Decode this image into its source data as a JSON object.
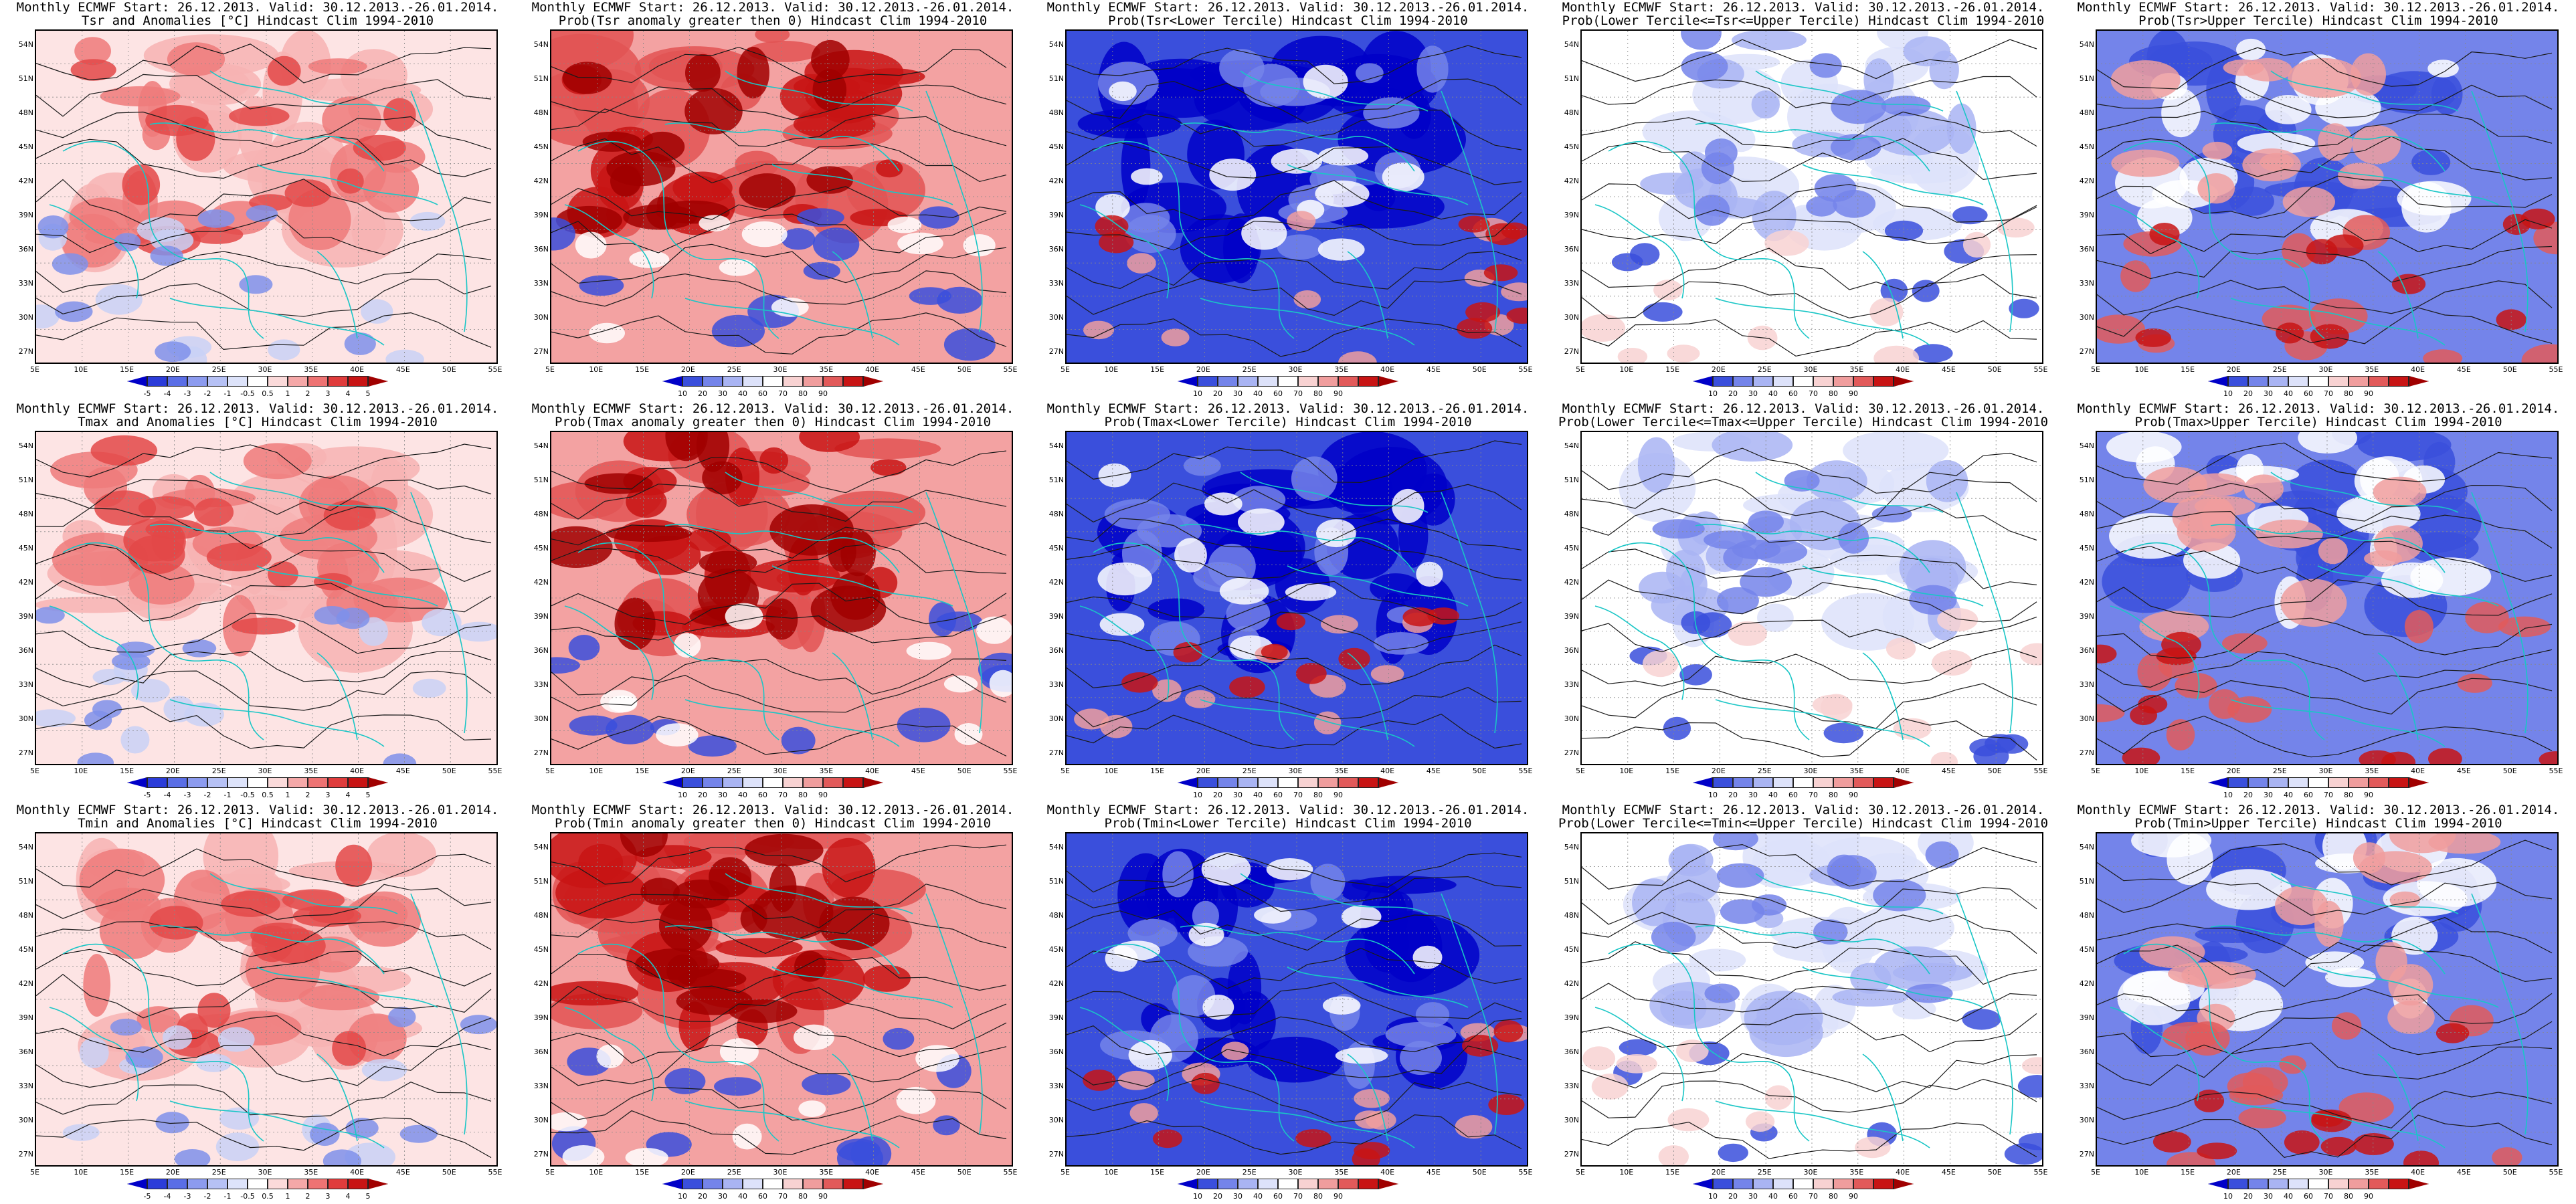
{
  "panels": [
    {
      "id": "tsr-anom",
      "title1": "Monthly ECMWF Start: 26.12.2013. Valid: 30.12.2013.-26.01.2014.",
      "title2": "Tsr and Anomalies [°C] Hindcast Clim 1994-2010",
      "scale": "anom",
      "pattern": "anom-red"
    },
    {
      "id": "tsr-prob-gt0",
      "title1": "Monthly ECMWF Start: 26.12.2013. Valid: 30.12.2013.-26.01.2014.",
      "title2": "Prob(Tsr anomaly greater then 0) Hindcast Clim 1994-2010",
      "scale": "prob",
      "pattern": "prob-red"
    },
    {
      "id": "tsr-prob-lower",
      "title1": "Monthly ECMWF Start: 26.12.2013. Valid: 30.12.2013.-26.01.2014.",
      "title2": "Prob(Tsr<Lower Tercile) Hindcast Clim 1994-2010",
      "scale": "prob",
      "pattern": "prob-blue"
    },
    {
      "id": "tsr-prob-middle",
      "title1": "Monthly ECMWF Start: 26.12.2013. Valid: 30.12.2013.-26.01.2014.",
      "title2": "Prob(Lower Tercile<=Tsr<=Upper Tercile) Hindcast Clim 1994-2010",
      "scale": "prob",
      "pattern": "prob-mid"
    },
    {
      "id": "tsr-prob-upper",
      "title1": "Monthly ECMWF Start: 26.12.2013. Valid: 30.12.2013.-26.01.2014.",
      "title2": "Prob(Tsr>Upper Tercile) Hindcast Clim 1994-2010",
      "scale": "prob",
      "pattern": "prob-upper"
    },
    {
      "id": "tmax-anom",
      "title1": "Monthly ECMWF Start: 26.12.2013. Valid: 30.12.2013.-26.01.2014.",
      "title2": "Tmax and Anomalies [°C] Hindcast Clim 1994-2010",
      "scale": "anom",
      "pattern": "anom-red"
    },
    {
      "id": "tmax-prob-gt0",
      "title1": "Monthly ECMWF Start: 26.12.2013. Valid: 30.12.2013.-26.01.2014.",
      "title2": "Prob(Tmax anomaly greater then 0) Hindcast Clim 1994-2010",
      "scale": "prob",
      "pattern": "prob-red"
    },
    {
      "id": "tmax-prob-lower",
      "title1": "Monthly ECMWF Start: 26.12.2013. Valid: 30.12.2013.-26.01.2014.",
      "title2": "Prob(Tmax<Lower Tercile) Hindcast Clim 1994-2010",
      "scale": "prob",
      "pattern": "prob-blue"
    },
    {
      "id": "tmax-prob-middle",
      "title1": "Monthly ECMWF Start: 26.12.2013. Valid: 30.12.2013.-26.01.2014.",
      "title2": "Prob(Lower Tercile<=Tmax<=Upper Tercile) Hindcast Clim 1994-2010",
      "scale": "prob",
      "pattern": "prob-mid"
    },
    {
      "id": "tmax-prob-upper",
      "title1": "Monthly ECMWF Start: 26.12.2013. Valid: 30.12.2013.-26.01.2014.",
      "title2": "Prob(Tmax>Upper Tercile) Hindcast Clim 1994-2010",
      "scale": "prob",
      "pattern": "prob-upper"
    },
    {
      "id": "tmin-anom",
      "title1": "Monthly ECMWF Start: 26.12.2013. Valid: 30.12.2013.-26.01.2014.",
      "title2": "Tmin and Anomalies [°C] Hindcast Clim 1994-2010",
      "scale": "anom",
      "pattern": "anom-red"
    },
    {
      "id": "tmin-prob-gt0",
      "title1": "Monthly ECMWF Start: 26.12.2013. Valid: 30.12.2013.-26.01.2014.",
      "title2": "Prob(Tmin anomaly greater then 0) Hindcast Clim 1994-2010",
      "scale": "prob",
      "pattern": "prob-red"
    },
    {
      "id": "tmin-prob-lower",
      "title1": "Monthly ECMWF Start: 26.12.2013. Valid: 30.12.2013.-26.01.2014.",
      "title2": "Prob(Tmin<Lower Tercile) Hindcast Clim 1994-2010",
      "scale": "prob",
      "pattern": "prob-blue"
    },
    {
      "id": "tmin-prob-middle",
      "title1": "Monthly ECMWF Start: 26.12.2013. Valid: 30.12.2013.-26.01.2014.",
      "title2": "Prob(Lower Tercile<=Tmin<=Upper Tercile) Hindcast Clim 1994-2010",
      "scale": "prob",
      "pattern": "prob-mid"
    },
    {
      "id": "tmin-prob-upper",
      "title1": "Monthly ECMWF Start: 26.12.2013. Valid: 30.12.2013.-26.01.2014.",
      "title2": "Prob(Tmin>Upper Tercile) Hindcast Clim 1994-2010",
      "scale": "prob",
      "pattern": "prob-upper"
    }
  ],
  "axes": {
    "lat_labels": [
      "54N",
      "51N",
      "48N",
      "45N",
      "42N",
      "39N",
      "36N",
      "33N",
      "30N",
      "27N"
    ],
    "lon_labels": [
      "5E",
      "10E",
      "15E",
      "20E",
      "25E",
      "30E",
      "35E",
      "40E",
      "45E",
      "50E",
      "55E"
    ]
  },
  "colorbars": {
    "anom": {
      "ticks": [
        "-5",
        "-4",
        "-3",
        "-2",
        "-1",
        "-0.5",
        "0.5",
        "1",
        "2",
        "3",
        "4",
        "5"
      ],
      "colors": [
        "#0000c8",
        "#2b3cd9",
        "#5a6ee6",
        "#8c9bef",
        "#b6c1f5",
        "#dde3fa",
        "#ffffff",
        "#fbdada",
        "#f5a8a8",
        "#ee7373",
        "#e03c3c",
        "#c81414",
        "#a00000"
      ]
    },
    "prob": {
      "ticks": [
        "10",
        "20",
        "30",
        "40",
        "60",
        "70",
        "80",
        "90"
      ],
      "colors": [
        "#0000c8",
        "#3a4fdc",
        "#7484ea",
        "#a9b4f3",
        "#dde2fa",
        "#ffffff",
        "#f8d2d2",
        "#f09d9d",
        "#e25a5a",
        "#c81414",
        "#a00000"
      ]
    }
  }
}
